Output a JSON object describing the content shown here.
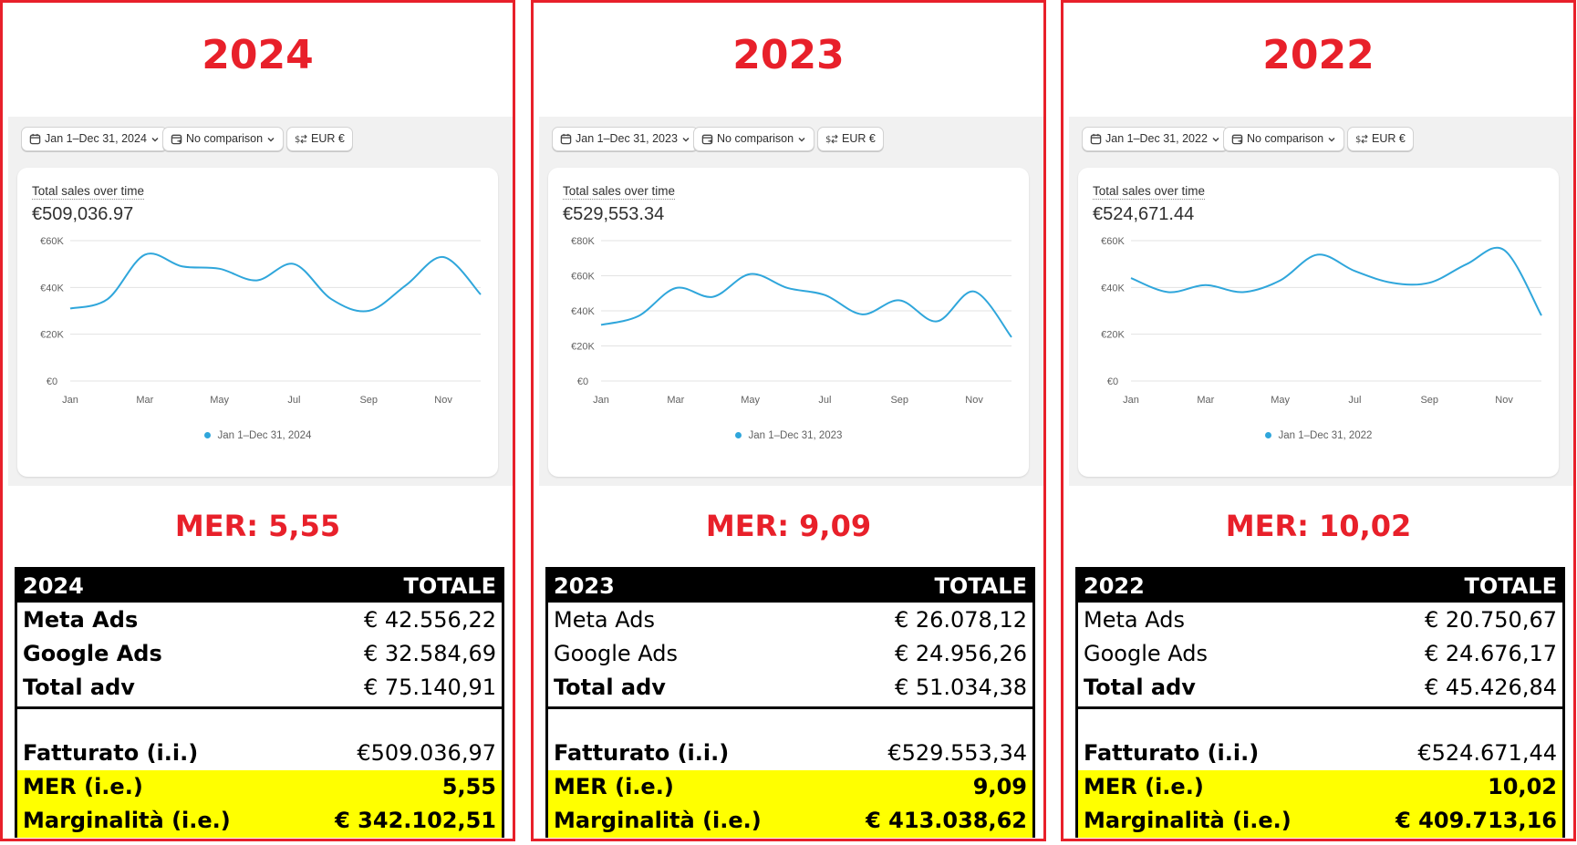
{
  "colors": {
    "accent_red": "#e8202a",
    "line_blue": "#2fa6db",
    "highlight_yellow": "#ffff00"
  },
  "icons": [
    "calendar-icon",
    "compare-icon",
    "currency-icon",
    "chevron-down-icon"
  ],
  "panels": [
    {
      "year": "2024",
      "filters": {
        "date": "Jan 1–Dec 31, 2024",
        "comparison": "No comparison",
        "currency": "EUR €"
      },
      "card": {
        "title": "Total sales over time",
        "total": "€509,036.97",
        "legend": "Jan 1–Dec 31, 2024"
      },
      "mer_title": "MER: 5,55",
      "table": {
        "head": [
          "2024",
          "TOTALE"
        ],
        "meta": [
          "Meta Ads",
          "€ 42.556,22"
        ],
        "google": [
          "Google Ads",
          "€ 32.584,69"
        ],
        "total_adv": [
          "Total adv",
          "€ 75.140,91"
        ],
        "fatturato": [
          "Fatturato (i.i.)",
          "€509.036,97"
        ],
        "mer": [
          "MER (i.e.)",
          "5,55"
        ],
        "marg": [
          "Marginalità (i.e.)",
          "€ 342.102,51"
        ]
      }
    },
    {
      "year": "2023",
      "filters": {
        "date": "Jan 1–Dec 31, 2023",
        "comparison": "No comparison",
        "currency": "EUR €"
      },
      "card": {
        "title": "Total sales over time",
        "total": "€529,553.34",
        "legend": "Jan 1–Dec 31, 2023"
      },
      "mer_title": "MER: 9,09",
      "table": {
        "head": [
          "2023",
          "TOTALE"
        ],
        "meta": [
          "Meta Ads",
          "€ 26.078,12"
        ],
        "google": [
          "Google Ads",
          "€ 24.956,26"
        ],
        "total_adv": [
          "Total adv",
          "€ 51.034,38"
        ],
        "fatturato": [
          "Fatturato (i.i.)",
          "€529.553,34"
        ],
        "mer": [
          "MER (i.e.)",
          "9,09"
        ],
        "marg": [
          "Marginalità (i.e.)",
          "€ 413.038,62"
        ]
      }
    },
    {
      "year": "2022",
      "filters": {
        "date": "Jan 1–Dec 31, 2022",
        "comparison": "No comparison",
        "currency": "EUR €"
      },
      "card": {
        "title": "Total sales over time",
        "total": "€524,671.44",
        "legend": "Jan 1–Dec 31, 2022"
      },
      "mer_title": "MER: 10,02",
      "table": {
        "head": [
          "2022",
          "TOTALE"
        ],
        "meta": [
          "Meta Ads",
          "€ 20.750,67"
        ],
        "google": [
          "Google Ads",
          "€ 24.676,17"
        ],
        "total_adv": [
          "Total adv",
          "€ 45.426,84"
        ],
        "fatturato": [
          "Fatturato (i.i.)",
          "€524.671,44"
        ],
        "mer": [
          "MER (i.e.)",
          "10,02"
        ],
        "marg": [
          "Marginalità (i.e.)",
          "€ 409.713,16"
        ]
      }
    }
  ],
  "chart_data": [
    {
      "type": "line",
      "title": "Total sales over time",
      "x": [
        "Jan",
        "Feb",
        "Mar",
        "Apr",
        "May",
        "Jun",
        "Jul",
        "Aug",
        "Sep",
        "Oct",
        "Nov",
        "Dec"
      ],
      "xticks": [
        "Jan",
        "Mar",
        "May",
        "Jul",
        "Sep",
        "Nov"
      ],
      "yticks": [
        "€0",
        "€20K",
        "€40K",
        "€60K"
      ],
      "ylim": [
        0,
        60000
      ],
      "series": [
        {
          "name": "Jan 1–Dec 31, 2024",
          "values": [
            31000,
            35000,
            54000,
            49000,
            48000,
            43000,
            50000,
            35000,
            30000,
            41000,
            53000,
            37000
          ]
        }
      ]
    },
    {
      "type": "line",
      "title": "Total sales over time",
      "x": [
        "Jan",
        "Feb",
        "Mar",
        "Apr",
        "May",
        "Jun",
        "Jul",
        "Aug",
        "Sep",
        "Oct",
        "Nov",
        "Dec"
      ],
      "xticks": [
        "Jan",
        "Mar",
        "May",
        "Jul",
        "Sep",
        "Nov"
      ],
      "yticks": [
        "€0",
        "€20K",
        "€40K",
        "€60K",
        "€80K"
      ],
      "ylim": [
        0,
        80000
      ],
      "series": [
        {
          "name": "Jan 1–Dec 31, 2023",
          "values": [
            32000,
            37000,
            53000,
            48000,
            61000,
            53000,
            49000,
            38000,
            46000,
            34000,
            51000,
            25000
          ]
        }
      ]
    },
    {
      "type": "line",
      "title": "Total sales over time",
      "x": [
        "Jan",
        "Feb",
        "Mar",
        "Apr",
        "May",
        "Jun",
        "Jul",
        "Aug",
        "Sep",
        "Oct",
        "Nov",
        "Dec"
      ],
      "xticks": [
        "Jan",
        "Mar",
        "May",
        "Jul",
        "Sep",
        "Nov"
      ],
      "yticks": [
        "€0",
        "€20K",
        "€40K",
        "€60K"
      ],
      "ylim": [
        0,
        60000
      ],
      "series": [
        {
          "name": "Jan 1–Dec 31, 2022",
          "values": [
            44000,
            38000,
            41000,
            38000,
            43000,
            54000,
            47000,
            42000,
            42000,
            50000,
            56000,
            28000
          ]
        }
      ]
    }
  ]
}
